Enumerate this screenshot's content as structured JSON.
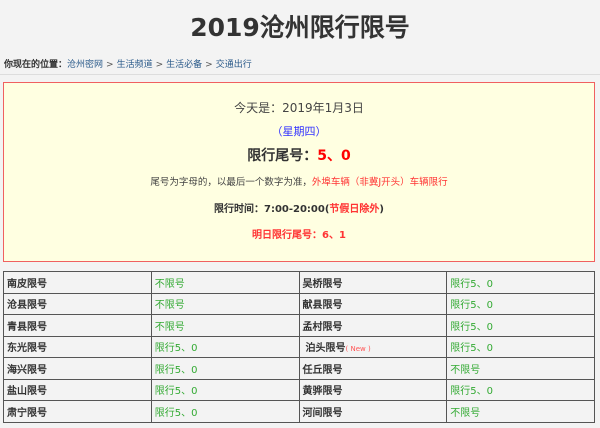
{
  "title": "2019沧州限行限号",
  "breadcrumb": {
    "label": "你现在的位置：",
    "items": [
      "沧州密网",
      "生活频道",
      "生活必备",
      "交通出行"
    ],
    "separator": ">"
  },
  "info": {
    "today": "今天是：2019年1月3日",
    "weekday": "（星期四）",
    "tail_label": "限行尾号：",
    "tail_value": "5、0",
    "rule_text": "尾号为字母的，以最后一个数字为准，",
    "rule_highlight": "外埠车辆（非冀J开头）车辆限行",
    "time_label": "限行时间：7:00-20:00(",
    "time_highlight": "节假日除外",
    "time_end": ")",
    "tomorrow": "明日限行尾号：6、1"
  },
  "colors": {
    "border": "#f06060",
    "box_bg": "#ffffe1",
    "green": "#33aa33",
    "red": "#ff0000"
  },
  "table": [
    [
      {
        "name": "南皮限号",
        "value": "不限号"
      },
      {
        "name": "吴桥限号",
        "value": "限行5、0"
      }
    ],
    [
      {
        "name": "沧县限号",
        "value": "不限号"
      },
      {
        "name": "献县限号",
        "value": "限行5、0"
      }
    ],
    [
      {
        "name": "青县限号",
        "value": "不限号"
      },
      {
        "name": "孟村限号",
        "value": "限行5、0"
      }
    ],
    [
      {
        "name": "东光限号",
        "value": "限行5、0"
      },
      {
        "name": "泊头限号",
        "badge": "( New )",
        "value": "限行5、0"
      }
    ],
    [
      {
        "name": "海兴限号",
        "value": "限行5、0"
      },
      {
        "name": "任丘限号",
        "value": "不限号"
      }
    ],
    [
      {
        "name": "盐山限号",
        "value": "限行5、0"
      },
      {
        "name": "黄骅限号",
        "value": "限行5、0"
      }
    ],
    [
      {
        "name": "肃宁限号",
        "value": "限行5、0"
      },
      {
        "name": "河间限号",
        "value": "不限号"
      }
    ]
  ]
}
